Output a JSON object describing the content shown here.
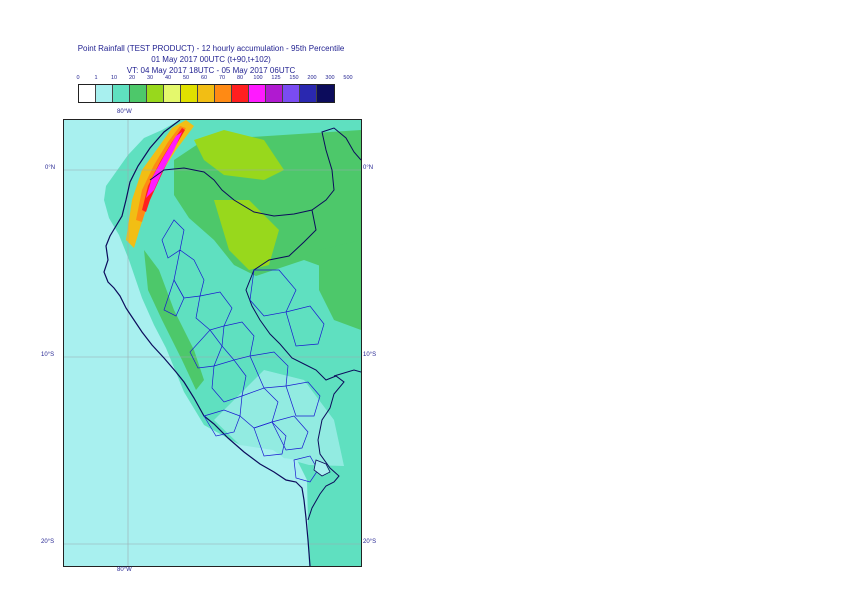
{
  "title": {
    "line1": "Point Rainfall (TEST PRODUCT) - 12 hourly accumulation - 95th Percentile",
    "line2": "01 May 2017 00UTC (t+90,t+102)",
    "line3": "VT: 04 May 2017 18UTC - 05 May 2017 06UTC"
  },
  "legend": {
    "labels": [
      "0",
      "1",
      "10",
      "20",
      "30",
      "40",
      "50",
      "60",
      "70",
      "80",
      "100",
      "125",
      "150",
      "200",
      "300",
      "500"
    ],
    "colors": [
      "#ffffff",
      "#a8f0ef",
      "#5fe0c0",
      "#4dc86a",
      "#98d81c",
      "#e4f86c",
      "#e0e000",
      "#f2be14",
      "#ff8a14",
      "#ff1f1f",
      "#ff1aff",
      "#b01ad0",
      "#7a4cf2",
      "#2a28b0",
      "#0c0c5c"
    ]
  },
  "axes": {
    "lon_top": "80°W",
    "lon_bottom": "80°W",
    "lat_0_left": "0°N",
    "lat_0_right": "0°N",
    "lat_10_left": "10°S",
    "lat_10_right": "10°S",
    "lat_20_left": "20°S",
    "lat_20_right": "20°S"
  },
  "map": {
    "ocean_color": "#a8f0ef",
    "land_light_color": "#5fe0c0",
    "land_green_color": "#4dc86a",
    "land_lime_color": "#98d81c",
    "coast_color": "#0c0c5c",
    "admin_color": "#1a1ad0",
    "grid_color": "#9aaab0"
  }
}
